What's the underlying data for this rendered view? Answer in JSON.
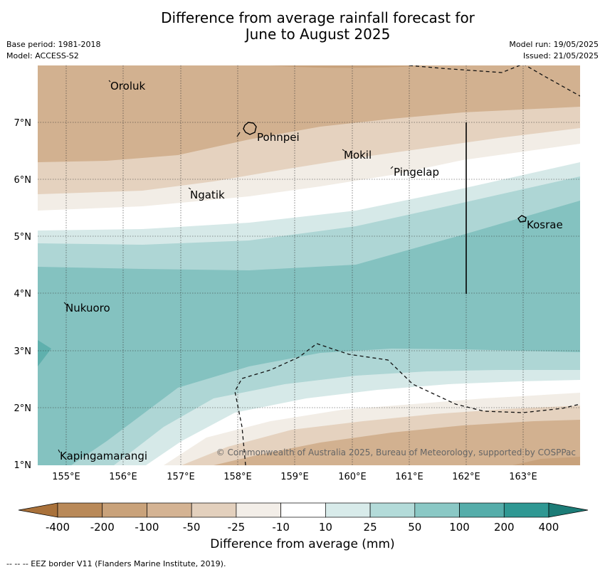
{
  "title_line1": "Difference from average rainfall forecast for",
  "title_line2": "June to August 2025",
  "meta_left": [
    "Base period: 1981-2018",
    "Model: ACCESS-S2"
  ],
  "meta_right": [
    "Model run: 19/05/2025",
    "Issued: 21/05/2025"
  ],
  "x_ticks": [
    "155°E",
    "156°E",
    "157°E",
    "158°E",
    "159°E",
    "160°E",
    "161°E",
    "162°E",
    "163°E"
  ],
  "y_ticks": [
    "7°N",
    "6°N",
    "5°N",
    "4°N",
    "3°N",
    "2°N",
    "1°N"
  ],
  "places": [
    "Oroluk",
    "Pohnpei",
    "Mokil",
    "Pingelap",
    "Ngatik",
    "Kosrae",
    "Nukuoro",
    "Kapingamarangi"
  ],
  "copyright": "© Commonwealth of Australia 2025, Bureau of Meteorology, supported by COSPPac",
  "colorbar": {
    "labels": [
      "-400",
      "-200",
      "-100",
      "-50",
      "-25",
      "-10",
      "10",
      "25",
      "50",
      "100",
      "200",
      "400"
    ],
    "colors": [
      "#a9713a",
      "#b98958",
      "#c9a27a",
      "#d4b393",
      "#e3d0bd",
      "#f3eee8",
      "#ffffff",
      "#d8ebea",
      "#b3dbd9",
      "#8ac8c5",
      "#55adaa",
      "#2f9893",
      "#1c7c77"
    ],
    "label": "Difference from average (mm)"
  },
  "footnote": "-- --  -- EEZ border V11 (Flanders Marine Institute, 2019)."
}
